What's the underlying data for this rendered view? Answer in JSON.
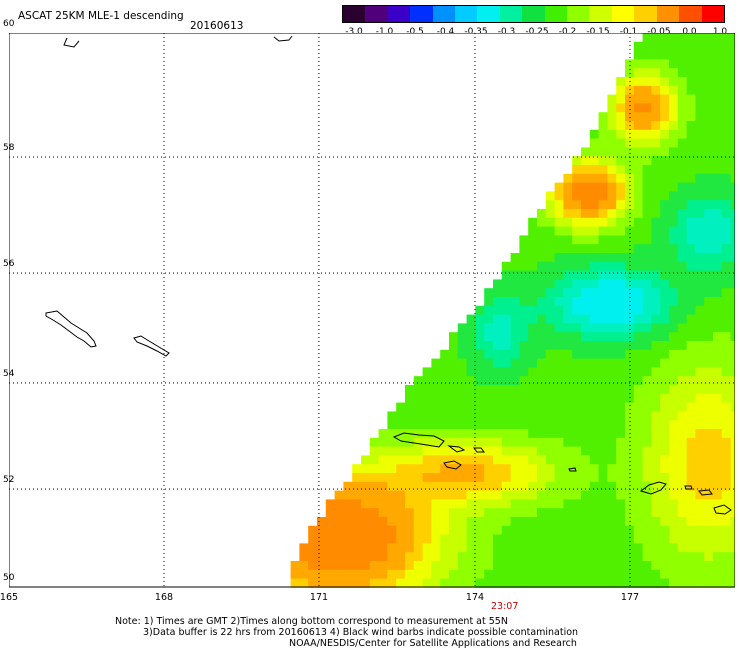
{
  "header": {
    "title": "ASCAT 25KM MLE-1 descending",
    "date": "20160613"
  },
  "colorbar": {
    "colors": [
      "#2a0030",
      "#50007a",
      "#3a00c8",
      "#0030ff",
      "#0090ff",
      "#00ccff",
      "#00f0f0",
      "#00f0a0",
      "#10e040",
      "#40f000",
      "#90ff00",
      "#d0ff00",
      "#ffff00",
      "#ffd000",
      "#ff9000",
      "#ff5000",
      "#ff0000"
    ],
    "labels": [
      "-3.0",
      "-1.0",
      "-0.5",
      "-0.4",
      "-0.35",
      "-0.3",
      "-0.25",
      "-0.2",
      "-0.15",
      "-0.1",
      "-0.05",
      "0.0",
      "1.0"
    ]
  },
  "axes": {
    "lat_labels": [
      "50",
      "52",
      "54",
      "56",
      "58",
      "60"
    ],
    "lon_labels": [
      "165",
      "168",
      "171",
      "174",
      "177"
    ],
    "lat_range": [
      50,
      60
    ],
    "lon_range": [
      165,
      179.3
    ]
  },
  "time_label": "23:07",
  "notes": {
    "line1": "Note: 1) Times are GMT 2)Times along bottom correspond to measurement at 55N",
    "line2": "3)Data buffer is 22 hrs from 20160613 4) Black wind barbs indicate possible contamination",
    "line3": "NOAA/NESDIS/Center for Satellite Applications and Research"
  }
}
